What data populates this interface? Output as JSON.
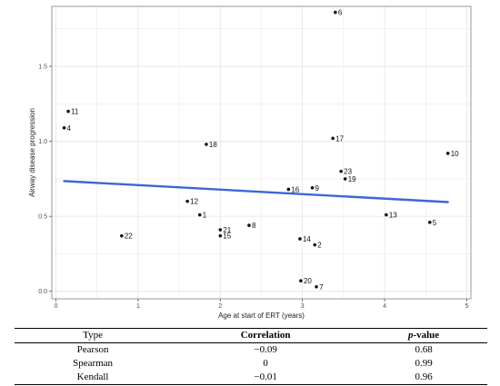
{
  "chart_data": {
    "type": "scatter",
    "xlabel": "Age at start of ERT (years)",
    "ylabel": "Airway disease progression",
    "xlim": [
      -0.05,
      5.05
    ],
    "ylim": [
      -0.05,
      1.9
    ],
    "x_ticks": [
      "0",
      "1",
      "2",
      "3",
      "4",
      "5"
    ],
    "y_ticks": [
      "0.0",
      "0.5",
      "1.0",
      "1.5"
    ],
    "grid": true,
    "points": [
      {
        "label": "1",
        "x": 1.75,
        "y": 0.51
      },
      {
        "label": "2",
        "x": 3.15,
        "y": 0.31
      },
      {
        "label": "4",
        "x": 0.1,
        "y": 1.09
      },
      {
        "label": "5",
        "x": 4.55,
        "y": 0.46
      },
      {
        "label": "6",
        "x": 3.4,
        "y": 1.86
      },
      {
        "label": "7",
        "x": 3.17,
        "y": 0.03
      },
      {
        "label": "8",
        "x": 2.35,
        "y": 0.44
      },
      {
        "label": "9",
        "x": 3.12,
        "y": 0.69
      },
      {
        "label": "10",
        "x": 4.77,
        "y": 0.92
      },
      {
        "label": "11",
        "x": 0.15,
        "y": 1.2
      },
      {
        "label": "12",
        "x": 1.6,
        "y": 0.6
      },
      {
        "label": "13",
        "x": 4.02,
        "y": 0.51
      },
      {
        "label": "14",
        "x": 2.97,
        "y": 0.35
      },
      {
        "label": "15",
        "x": 2.0,
        "y": 0.37
      },
      {
        "label": "16",
        "x": 2.83,
        "y": 0.68
      },
      {
        "label": "17",
        "x": 3.37,
        "y": 1.02
      },
      {
        "label": "18",
        "x": 1.83,
        "y": 0.98
      },
      {
        "label": "19",
        "x": 3.52,
        "y": 0.75
      },
      {
        "label": "20",
        "x": 2.98,
        "y": 0.07
      },
      {
        "label": "21",
        "x": 2.0,
        "y": 0.41
      },
      {
        "label": "22",
        "x": 0.8,
        "y": 0.37
      },
      {
        "label": "23",
        "x": 3.47,
        "y": 0.8
      }
    ],
    "trendline": {
      "x": [
        0.1,
        4.77
      ],
      "y": [
        0.735,
        0.595
      ],
      "color": "#3b67d6"
    },
    "colors": {
      "point": "#111111",
      "grid": "#e6e6e6",
      "border": "#7f7f7f"
    }
  },
  "table": {
    "headers": {
      "type": "Type",
      "correlation": "Correlation",
      "p_prefix": "p",
      "p_suffix": "-value"
    },
    "rows": [
      {
        "type": "Pearson",
        "correlation": "−0.09",
        "p": "0.68"
      },
      {
        "type": "Spearman",
        "correlation": "0",
        "p": "0.99"
      },
      {
        "type": "Kendall",
        "correlation": "−0.01",
        "p": "0.96"
      }
    ]
  }
}
